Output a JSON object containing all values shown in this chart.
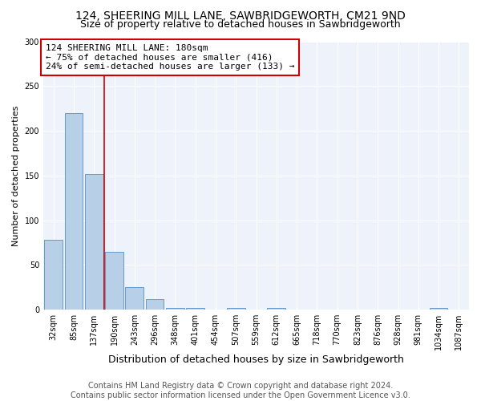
{
  "title": "124, SHEERING MILL LANE, SAWBRIDGEWORTH, CM21 9ND",
  "subtitle": "Size of property relative to detached houses in Sawbridgeworth",
  "xlabel": "Distribution of detached houses by size in Sawbridgeworth",
  "ylabel": "Number of detached properties",
  "footer_line1": "Contains HM Land Registry data © Crown copyright and database right 2024.",
  "footer_line2": "Contains public sector information licensed under the Open Government Licence v3.0.",
  "bin_labels": [
    "32sqm",
    "85sqm",
    "137sqm",
    "190sqm",
    "243sqm",
    "296sqm",
    "348sqm",
    "401sqm",
    "454sqm",
    "507sqm",
    "559sqm",
    "612sqm",
    "665sqm",
    "718sqm",
    "770sqm",
    "823sqm",
    "876sqm",
    "928sqm",
    "981sqm",
    "1034sqm",
    "1087sqm"
  ],
  "bar_heights": [
    78,
    220,
    152,
    65,
    25,
    12,
    2,
    2,
    0,
    2,
    0,
    2,
    0,
    0,
    0,
    0,
    0,
    0,
    0,
    2,
    0
  ],
  "bar_color": "#b8cfe8",
  "bar_edge_color": "#6699cc",
  "vline_x_index": 2.5,
  "vline_color": "#cc0000",
  "annotation_text": "124 SHEERING MILL LANE: 180sqm\n← 75% of detached houses are smaller (416)\n24% of semi-detached houses are larger (133) →",
  "annotation_box_color": "white",
  "annotation_box_edge_color": "#cc0000",
  "ylim": [
    0,
    300
  ],
  "yticks": [
    0,
    50,
    100,
    150,
    200,
    250,
    300
  ],
  "background_color": "#eef2fa",
  "title_fontsize": 10,
  "subtitle_fontsize": 9,
  "annotation_fontsize": 8,
  "xlabel_fontsize": 9,
  "ylabel_fontsize": 8,
  "footer_fontsize": 7,
  "tick_fontsize": 7
}
